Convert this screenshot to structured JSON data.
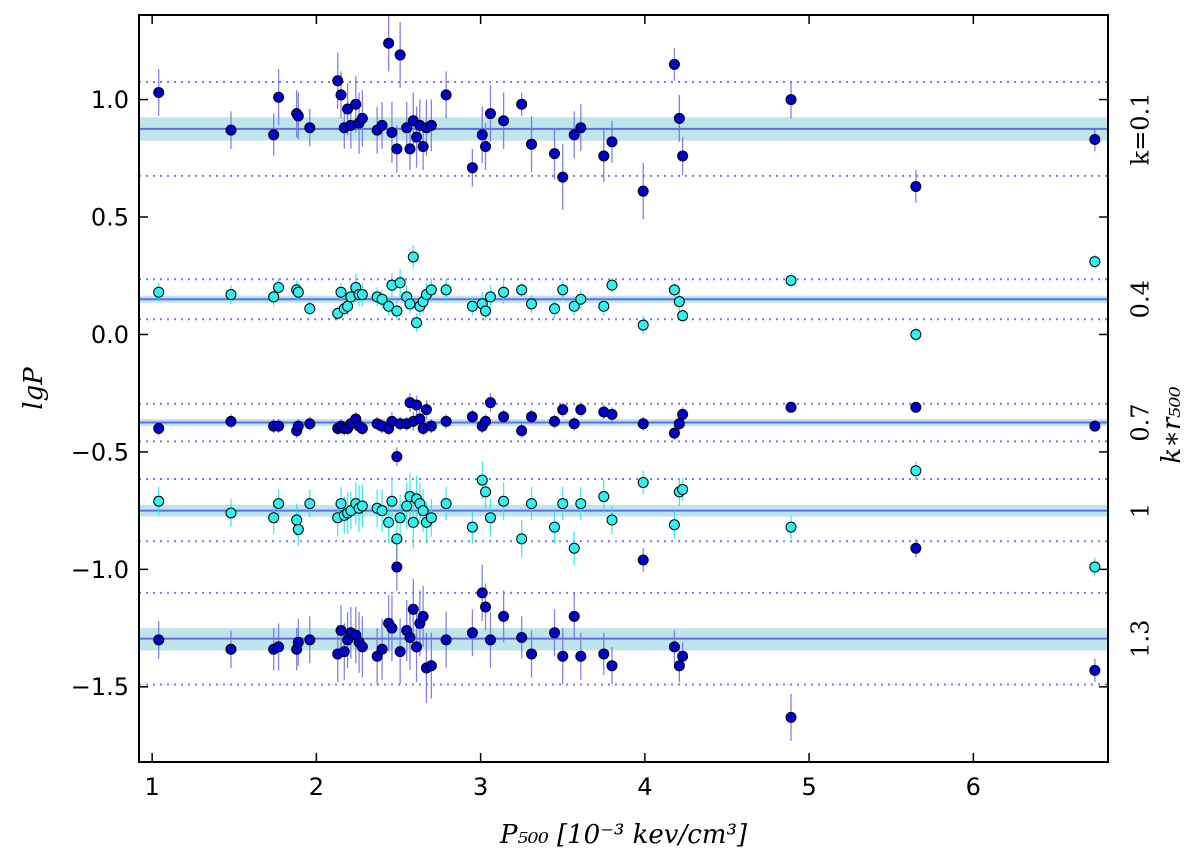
{
  "chart_data": {
    "type": "scatter",
    "title": "",
    "xlabel": "P₅₀₀ [10⁻³ kev/cm³]",
    "ylabel": "lgP",
    "right_axis_label": "k∗r₅₀₀",
    "xlim": [
      0.92,
      6.82
    ],
    "ylim": [
      -1.82,
      1.36
    ],
    "x_ticks": [
      1,
      2,
      3,
      4,
      5,
      6
    ],
    "y_ticks": [
      {
        "value": 1.0,
        "label": "1.0"
      },
      {
        "value": 0.5,
        "label": "0.5"
      },
      {
        "value": 0.0,
        "label": "0.0"
      },
      {
        "value": -0.5,
        "label": "−0.5"
      },
      {
        "value": -1.0,
        "label": "−1.0"
      },
      {
        "value": -1.5,
        "label": "−1.5"
      }
    ],
    "grid": false,
    "colors": {
      "dark_points": "#0000cd",
      "light_points": "#33f0f0",
      "dark_errorbars": "#6f6fe0",
      "light_errorbars": "#1ee8e8",
      "mean_line": "#5a6fe8",
      "band": "#a8dbe5",
      "dotted_line": "#7a7ae0"
    },
    "x": [
      1.04,
      1.48,
      1.74,
      1.77,
      1.88,
      1.89,
      1.96,
      2.13,
      2.15,
      2.17,
      2.19,
      2.21,
      2.24,
      2.26,
      2.28,
      2.37,
      2.4,
      2.44,
      2.46,
      2.49,
      2.51,
      2.55,
      2.57,
      2.59,
      2.61,
      2.63,
      2.65,
      2.67,
      2.7,
      2.79,
      2.95,
      3.01,
      3.03,
      3.06,
      3.14,
      3.25,
      3.31,
      3.45,
      3.5,
      3.57,
      3.61,
      3.75,
      3.8,
      3.99,
      4.18,
      4.21,
      4.23,
      4.89,
      5.65,
      6.74
    ],
    "bands": [
      {
        "label": "k=0.1",
        "mean": 0.875,
        "band": [
          0.825,
          0.925
        ],
        "dotted": [
          0.675,
          1.075
        ],
        "style": "dark",
        "y": [
          1.03,
          0.87,
          0.85,
          1.01,
          0.94,
          0.93,
          0.88,
          1.08,
          1.02,
          0.88,
          0.96,
          0.89,
          0.98,
          0.9,
          0.92,
          0.87,
          0.89,
          1.24,
          0.86,
          0.79,
          1.19,
          0.88,
          0.79,
          0.91,
          0.84,
          0.89,
          0.8,
          0.88,
          0.89,
          1.02,
          0.71,
          0.85,
          0.8,
          0.94,
          0.91,
          0.98,
          0.81,
          0.77,
          0.67,
          0.85,
          0.88,
          0.76,
          0.82,
          0.61,
          1.15,
          0.92,
          0.76,
          1.0,
          0.63,
          0.83
        ],
        "err": [
          0.1,
          0.08,
          0.09,
          0.12,
          0.1,
          0.1,
          0.08,
          0.12,
          0.1,
          0.09,
          0.11,
          0.1,
          0.12,
          0.13,
          0.12,
          0.1,
          0.1,
          0.12,
          0.13,
          0.1,
          0.14,
          0.11,
          0.09,
          0.12,
          0.13,
          0.11,
          0.1,
          0.12,
          0.11,
          0.1,
          0.08,
          0.12,
          0.1,
          0.12,
          0.12,
          0.05,
          0.12,
          0.11,
          0.14,
          0.1,
          0.1,
          0.11,
          0.09,
          0.12,
          0.07,
          0.1,
          0.08,
          0.08,
          0.07,
          0.05
        ]
      },
      {
        "label": "0.4",
        "mean": 0.15,
        "band": [
          0.135,
          0.165
        ],
        "dotted": [
          0.065,
          0.235
        ],
        "style": "light",
        "y": [
          0.18,
          0.17,
          0.16,
          0.2,
          0.19,
          0.18,
          0.11,
          0.09,
          0.18,
          0.11,
          0.12,
          0.16,
          0.2,
          0.17,
          0.17,
          0.16,
          0.15,
          0.12,
          0.21,
          0.1,
          0.22,
          0.16,
          0.13,
          0.33,
          0.05,
          0.12,
          0.14,
          0.17,
          0.19,
          0.19,
          0.12,
          0.13,
          0.1,
          0.16,
          0.18,
          0.19,
          0.13,
          0.11,
          0.19,
          0.12,
          0.15,
          0.12,
          0.21,
          0.04,
          0.19,
          0.14,
          0.08,
          0.23,
          0.0,
          0.31
        ],
        "err": [
          0.04,
          0.04,
          0.04,
          0.04,
          0.04,
          0.04,
          0.03,
          0.03,
          0.04,
          0.03,
          0.04,
          0.05,
          0.06,
          0.05,
          0.05,
          0.04,
          0.04,
          0.04,
          0.05,
          0.04,
          0.06,
          0.05,
          0.04,
          0.05,
          0.04,
          0.04,
          0.05,
          0.05,
          0.05,
          0.05,
          0.04,
          0.05,
          0.04,
          0.05,
          0.05,
          0.03,
          0.04,
          0.04,
          0.04,
          0.04,
          0.04,
          0.04,
          0.03,
          0.04,
          0.03,
          0.04,
          0.03,
          0.03,
          0.03,
          0.03
        ]
      },
      {
        "label": "0.7",
        "mean": -0.375,
        "band": [
          -0.39,
          -0.36
        ],
        "dotted": [
          -0.455,
          -0.295
        ],
        "style": "dark",
        "y": [
          -0.4,
          -0.37,
          -0.39,
          -0.39,
          -0.41,
          -0.39,
          -0.38,
          -0.4,
          -0.39,
          -0.4,
          -0.4,
          -0.38,
          -0.36,
          -0.39,
          -0.4,
          -0.38,
          -0.39,
          -0.4,
          -0.37,
          -0.52,
          -0.38,
          -0.38,
          -0.29,
          -0.37,
          -0.3,
          -0.36,
          -0.4,
          -0.32,
          -0.39,
          -0.37,
          -0.35,
          -0.39,
          -0.37,
          -0.29,
          -0.35,
          -0.41,
          -0.35,
          -0.37,
          -0.32,
          -0.38,
          -0.32,
          -0.33,
          -0.34,
          -0.38,
          -0.42,
          -0.38,
          -0.34,
          -0.31,
          -0.31,
          -0.39
        ],
        "err": [
          0.03,
          0.03,
          0.03,
          0.03,
          0.03,
          0.03,
          0.03,
          0.03,
          0.03,
          0.03,
          0.03,
          0.03,
          0.03,
          0.03,
          0.03,
          0.03,
          0.03,
          0.03,
          0.04,
          0.04,
          0.03,
          0.03,
          0.04,
          0.04,
          0.04,
          0.04,
          0.03,
          0.04,
          0.03,
          0.03,
          0.03,
          0.03,
          0.03,
          0.04,
          0.03,
          0.03,
          0.03,
          0.03,
          0.03,
          0.03,
          0.03,
          0.03,
          0.03,
          0.03,
          0.03,
          0.03,
          0.03,
          0.02,
          0.02,
          0.02
        ]
      },
      {
        "label": "1",
        "mean": -0.75,
        "band": [
          -0.775,
          -0.725
        ],
        "dotted": [
          -0.88,
          -0.615
        ],
        "style": "light",
        "y": [
          -0.71,
          -0.76,
          -0.78,
          -0.72,
          -0.79,
          -0.83,
          -0.72,
          -0.78,
          -0.72,
          -0.77,
          -0.76,
          -0.75,
          -0.72,
          -0.74,
          -0.73,
          -0.74,
          -0.75,
          -0.8,
          -0.71,
          -0.87,
          -0.78,
          -0.73,
          -0.69,
          -0.8,
          -0.7,
          -0.72,
          -0.75,
          -0.8,
          -0.78,
          -0.72,
          -0.82,
          -0.62,
          -0.67,
          -0.78,
          -0.71,
          -0.87,
          -0.72,
          -0.82,
          -0.72,
          -0.91,
          -0.72,
          -0.69,
          -0.79,
          -0.63,
          -0.81,
          -0.67,
          -0.66,
          -0.82,
          -0.58,
          -0.99
        ],
        "err": [
          0.06,
          0.06,
          0.07,
          0.06,
          0.07,
          0.07,
          0.06,
          0.08,
          0.07,
          0.08,
          0.09,
          0.08,
          0.09,
          0.1,
          0.09,
          0.08,
          0.09,
          0.09,
          0.1,
          0.09,
          0.1,
          0.1,
          0.1,
          0.11,
          0.1,
          0.09,
          0.09,
          0.09,
          0.08,
          0.07,
          0.07,
          0.08,
          0.07,
          0.08,
          0.08,
          0.08,
          0.07,
          0.07,
          0.07,
          0.07,
          0.07,
          0.07,
          0.06,
          0.05,
          0.06,
          0.06,
          0.05,
          0.05,
          0.04,
          0.04
        ]
      },
      {
        "label": "1.3",
        "mean": -1.295,
        "band": [
          -1.345,
          -1.25
        ],
        "dotted": [
          -1.49,
          -1.1
        ],
        "style": "dark",
        "y": [
          -1.3,
          -1.34,
          -1.34,
          -1.33,
          -1.34,
          -1.31,
          -1.3,
          -1.36,
          -1.26,
          -1.35,
          -1.3,
          -1.27,
          -1.28,
          -1.31,
          -1.33,
          -1.37,
          -1.34,
          -1.23,
          -1.25,
          -0.99,
          -1.35,
          -1.26,
          -1.29,
          -1.17,
          -1.33,
          -1.23,
          -1.2,
          -1.42,
          -1.41,
          -1.3,
          -1.27,
          -1.1,
          -1.16,
          -1.3,
          -1.2,
          -1.29,
          -1.36,
          -1.27,
          -1.37,
          -1.2,
          -1.37,
          -1.36,
          -1.41,
          -0.96,
          -1.33,
          -1.41,
          -1.37,
          -1.63,
          -0.91,
          -1.43
        ],
        "err": [
          0.08,
          0.08,
          0.09,
          0.1,
          0.09,
          0.1,
          0.1,
          0.12,
          0.11,
          0.12,
          0.12,
          0.11,
          0.12,
          0.13,
          0.13,
          0.12,
          0.13,
          0.12,
          0.14,
          0.1,
          0.14,
          0.13,
          0.14,
          0.13,
          0.15,
          0.14,
          0.13,
          0.15,
          0.14,
          0.12,
          0.1,
          0.12,
          0.1,
          0.12,
          0.11,
          0.09,
          0.1,
          0.1,
          0.12,
          0.1,
          0.1,
          0.09,
          0.08,
          0.05,
          0.07,
          0.07,
          0.06,
          0.1,
          0.04,
          0.05
        ]
      }
    ]
  }
}
